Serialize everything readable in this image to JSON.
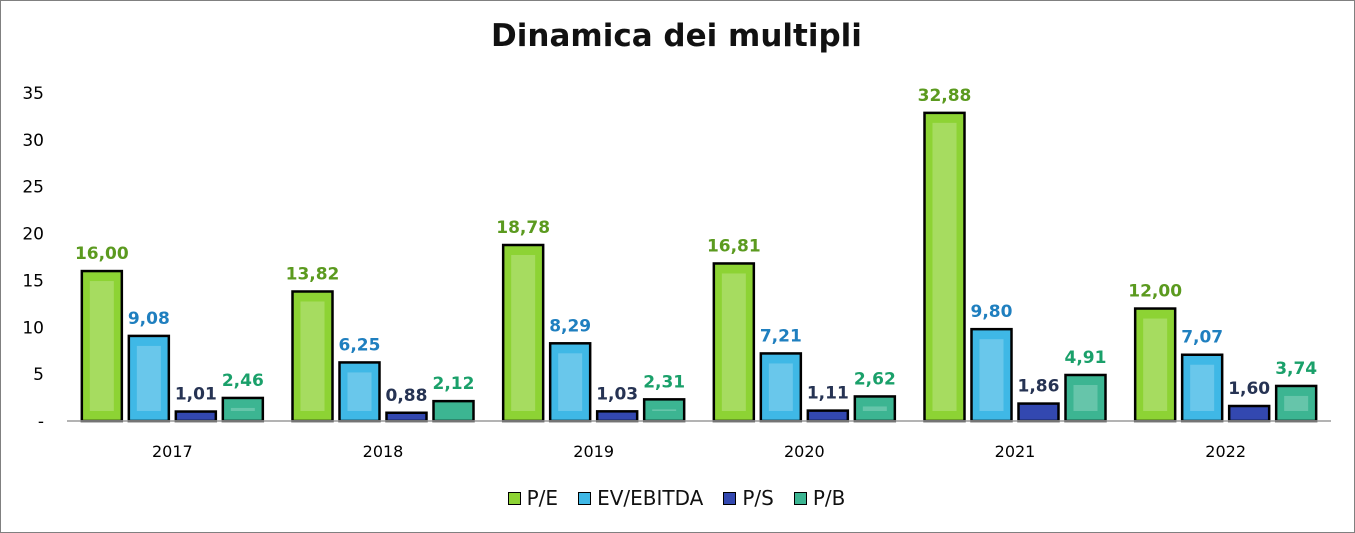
{
  "chart_data": {
    "type": "bar",
    "title": "Dinamica dei multipli",
    "categories": [
      "2017",
      "2018",
      "2019",
      "2020",
      "2021",
      "2022"
    ],
    "series": [
      {
        "name": "P/E",
        "color": "#8dd334",
        "label_color": "#5b9a1f",
        "values": [
          16.0,
          13.82,
          18.78,
          16.81,
          32.88,
          12.0
        ],
        "labels": [
          "16,00",
          "13,82",
          "18,78",
          "16,81",
          "32,88",
          "12,00"
        ]
      },
      {
        "name": "EV/EBITDA",
        "color": "#3fb8e6",
        "label_color": "#1f7fbf",
        "values": [
          9.08,
          6.25,
          8.29,
          7.21,
          9.8,
          7.07
        ],
        "labels": [
          "9,08",
          "6,25",
          "8,29",
          "7,21",
          "9,80",
          "7,07"
        ]
      },
      {
        "name": "P/S",
        "color": "#3348b0",
        "label_color": "#263353",
        "values": [
          1.01,
          0.88,
          1.03,
          1.11,
          1.86,
          1.6
        ],
        "labels": [
          "1,01",
          "0,88",
          "1,03",
          "1,11",
          "1,86",
          "1,60"
        ]
      },
      {
        "name": "P/B",
        "color": "#3cb592",
        "label_color": "#1aa06a",
        "values": [
          2.46,
          2.12,
          2.31,
          2.62,
          4.91,
          3.74
        ],
        "labels": [
          "2,46",
          "2,12",
          "2,31",
          "2,62",
          "4,91",
          "3,74"
        ]
      }
    ],
    "y_ticks": [
      "-",
      "5",
      "10",
      "15",
      "20",
      "25",
      "30",
      "35"
    ],
    "ylim": [
      0,
      35
    ],
    "legend_position": "bottom",
    "grid": false
  }
}
